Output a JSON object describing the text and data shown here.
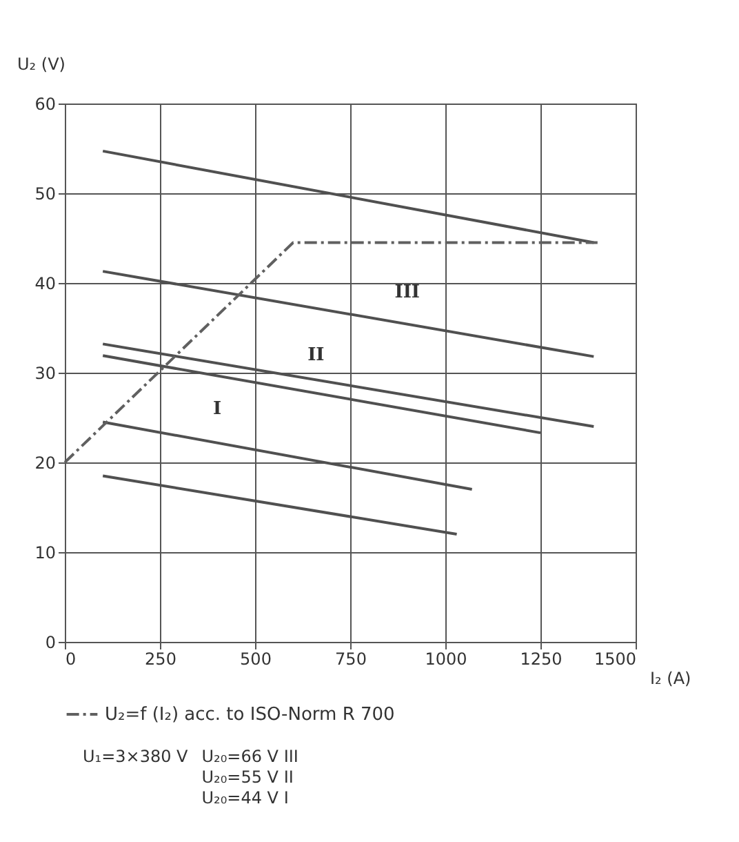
{
  "chart_data": {
    "type": "line",
    "xlabel": "I₂ (A)",
    "ylabel": "U₂ (V)",
    "xlim": [
      0,
      1500
    ],
    "xticks": [
      0,
      250,
      500,
      750,
      1000,
      1250,
      1500
    ],
    "ylim": [
      0,
      60
    ],
    "yticks": [
      0,
      10,
      20,
      30,
      40,
      50,
      60
    ],
    "grid": true,
    "legend": "bottom",
    "series": [
      {
        "color": "#505050",
        "x": [
          100,
          1390
        ],
        "values": [
          54.7,
          44.5
        ]
      },
      {
        "color": "#505050",
        "x": [
          100,
          1390
        ],
        "values": [
          41.3,
          31.8
        ]
      },
      {
        "color": "#505050",
        "x": [
          100,
          1390
        ],
        "values": [
          33.2,
          24
        ]
      },
      {
        "color": "#505050",
        "x": [
          100,
          1250
        ],
        "values": [
          31.9,
          23.3
        ]
      },
      {
        "color": "#505050",
        "x": [
          100,
          1070
        ],
        "values": [
          24.5,
          17
        ]
      },
      {
        "color": "#505050",
        "x": [
          100,
          1030
        ],
        "values": [
          18.5,
          12
        ]
      },
      {
        "name": "U₂=f (I₂) acc. to ISO-Norm R 700",
        "color": "#606060",
        "line_style": "dashed",
        "x": [
          0,
          600,
          1400
        ],
        "values": [
          20,
          44.5,
          44.5
        ]
      }
    ],
    "annotations": [
      "III",
      "II",
      "I",
      "U₁=3×380 V",
      "U₂₀=66 V III",
      "U₂₀=55 V II",
      "U₂₀=44 V I"
    ]
  }
}
